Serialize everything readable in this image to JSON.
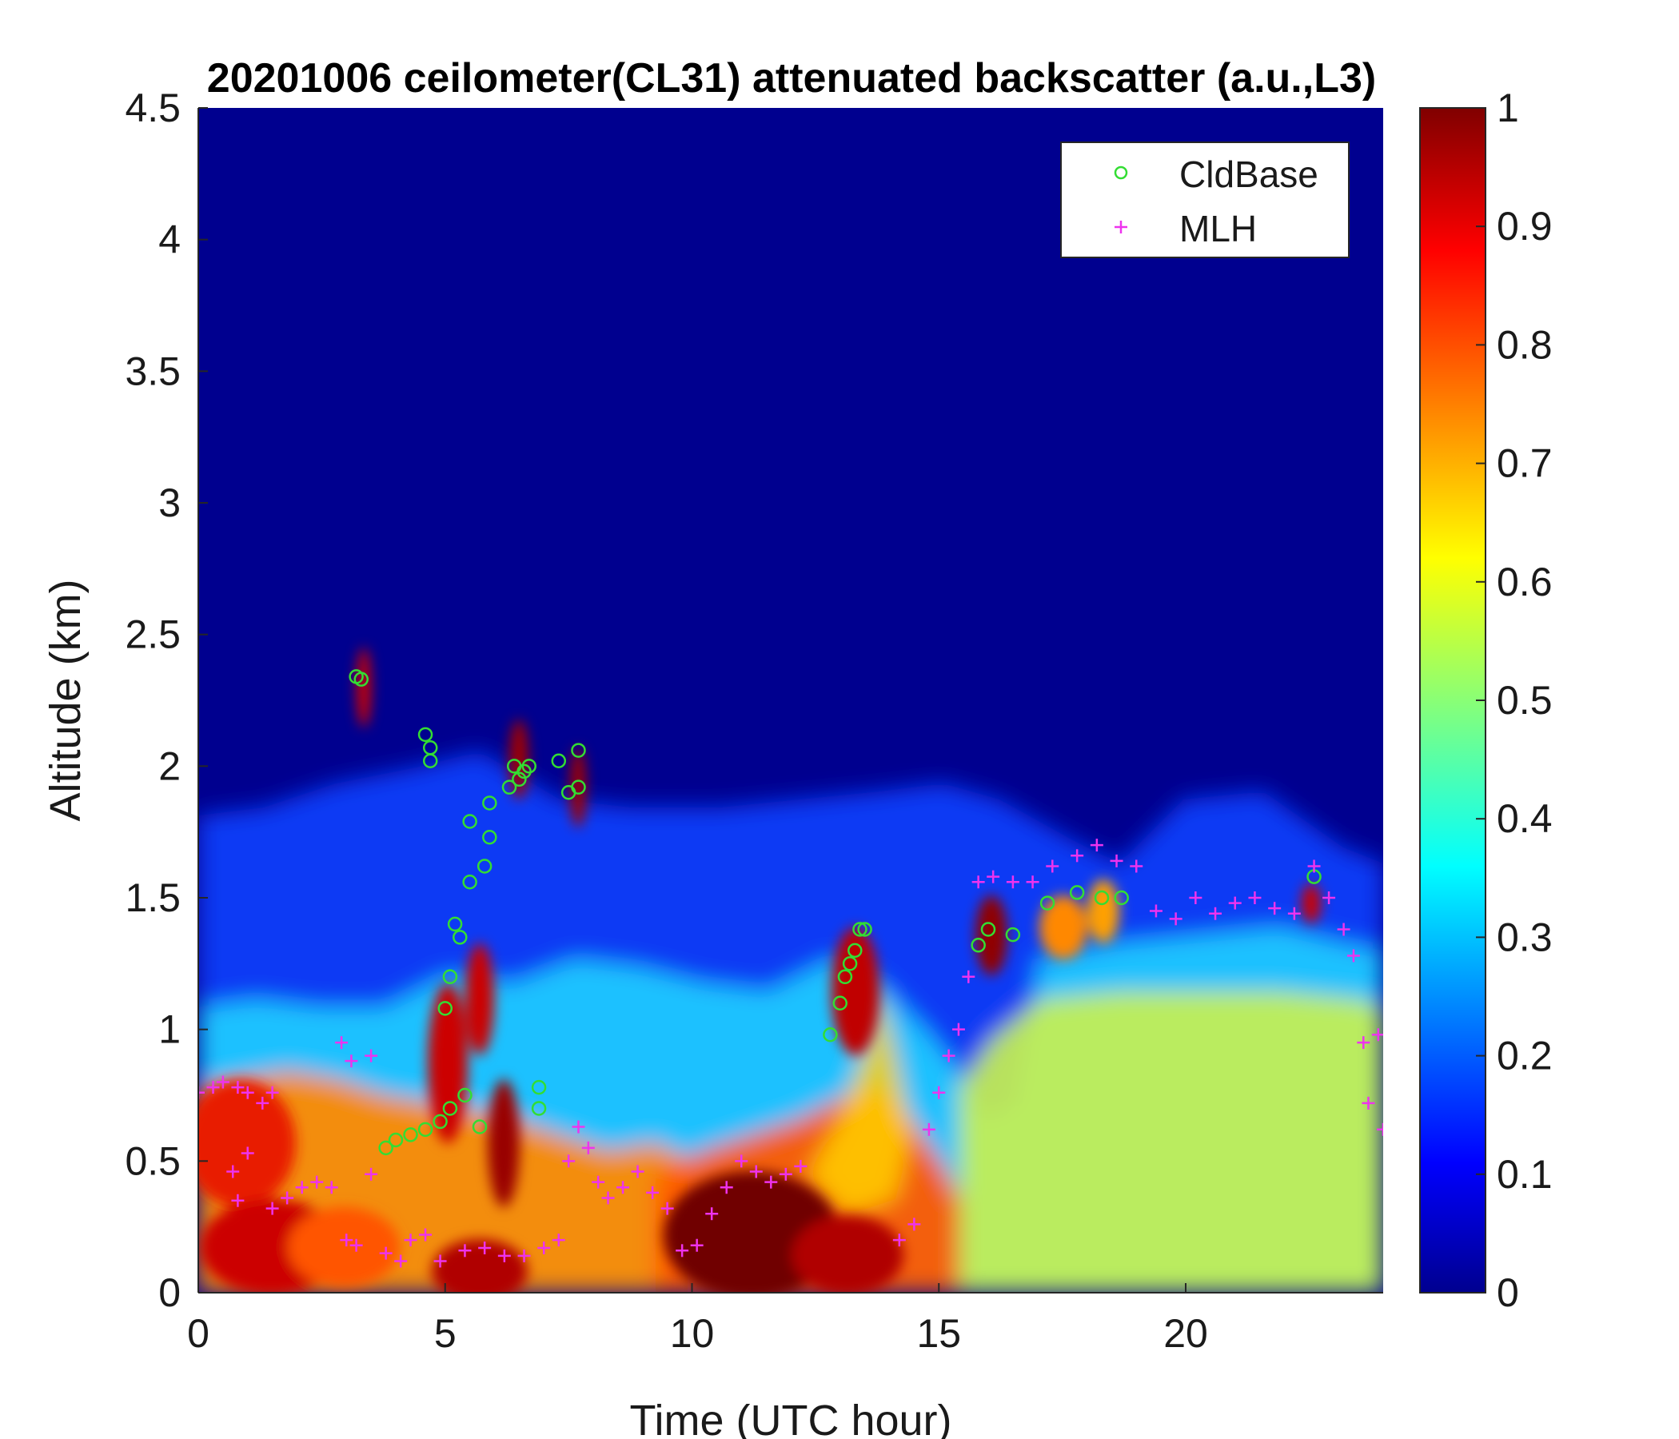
{
  "chart_data": {
    "type": "heatmap",
    "title": "20201006 ceilometer(CL31) attenuated backscatter (a.u.,L3)",
    "xlabel": "Time (UTC hour)",
    "ylabel": "Altitude (km)",
    "xlim": [
      0,
      24
    ],
    "ylim": [
      0,
      4.5
    ],
    "x_ticks": [
      "0",
      "5",
      "10",
      "15",
      "20"
    ],
    "y_ticks": [
      "0",
      "0.5",
      "1",
      "1.5",
      "2",
      "2.5",
      "3",
      "3.5",
      "4",
      "4.5"
    ],
    "colorbar": {
      "colormap": "jet",
      "clim": [
        0,
        1
      ],
      "ticks": [
        "0",
        "0.1",
        "0.2",
        "0.3",
        "0.4",
        "0.5",
        "0.6",
        "0.7",
        "0.8",
        "0.9",
        "1"
      ]
    },
    "legend": {
      "placement": "top-right"
    },
    "series": [
      {
        "name": "CldBase",
        "marker": "circle",
        "color": "#33dd33",
        "points": [
          [
            3.2,
            2.34
          ],
          [
            3.3,
            2.33
          ],
          [
            4.6,
            2.12
          ],
          [
            4.7,
            2.07
          ],
          [
            4.7,
            2.02
          ],
          [
            5.0,
            1.08
          ],
          [
            5.1,
            1.2
          ],
          [
            5.2,
            1.4
          ],
          [
            5.3,
            1.35
          ],
          [
            5.5,
            1.79
          ],
          [
            5.5,
            1.56
          ],
          [
            5.8,
            1.62
          ],
          [
            5.9,
            1.86
          ],
          [
            5.9,
            1.73
          ],
          [
            6.3,
            1.92
          ],
          [
            6.4,
            2.0
          ],
          [
            6.5,
            1.95
          ],
          [
            6.6,
            1.98
          ],
          [
            6.7,
            2.0
          ],
          [
            7.3,
            2.02
          ],
          [
            7.5,
            1.9
          ],
          [
            7.7,
            2.06
          ],
          [
            7.7,
            1.92
          ],
          [
            3.8,
            0.55
          ],
          [
            4.0,
            0.58
          ],
          [
            4.3,
            0.6
          ],
          [
            4.6,
            0.62
          ],
          [
            4.9,
            0.65
          ],
          [
            5.1,
            0.7
          ],
          [
            5.4,
            0.75
          ],
          [
            5.7,
            0.63
          ],
          [
            6.9,
            0.7
          ],
          [
            6.9,
            0.78
          ],
          [
            12.8,
            0.98
          ],
          [
            13.0,
            1.1
          ],
          [
            13.1,
            1.2
          ],
          [
            13.2,
            1.25
          ],
          [
            13.3,
            1.3
          ],
          [
            13.4,
            1.38
          ],
          [
            13.5,
            1.38
          ],
          [
            15.8,
            1.32
          ],
          [
            16.0,
            1.38
          ],
          [
            16.5,
            1.36
          ],
          [
            17.2,
            1.48
          ],
          [
            17.8,
            1.52
          ],
          [
            18.3,
            1.5
          ],
          [
            18.7,
            1.5
          ],
          [
            22.6,
            1.58
          ]
        ]
      },
      {
        "name": "MLH",
        "marker": "plus",
        "color": "#ee33ee",
        "points": [
          [
            0.0,
            0.76
          ],
          [
            0.3,
            0.78
          ],
          [
            0.5,
            0.8
          ],
          [
            0.8,
            0.78
          ],
          [
            1.0,
            0.76
          ],
          [
            1.3,
            0.72
          ],
          [
            1.5,
            0.76
          ],
          [
            0.7,
            0.46
          ],
          [
            0.8,
            0.35
          ],
          [
            1.0,
            0.53
          ],
          [
            1.5,
            0.32
          ],
          [
            1.8,
            0.36
          ],
          [
            2.1,
            0.4
          ],
          [
            2.4,
            0.42
          ],
          [
            2.7,
            0.4
          ],
          [
            3.0,
            0.2
          ],
          [
            3.2,
            0.18
          ],
          [
            2.9,
            0.95
          ],
          [
            3.1,
            0.88
          ],
          [
            3.5,
            0.9
          ],
          [
            3.5,
            0.45
          ],
          [
            3.8,
            0.15
          ],
          [
            4.1,
            0.12
          ],
          [
            4.3,
            0.2
          ],
          [
            4.6,
            0.22
          ],
          [
            4.9,
            0.12
          ],
          [
            5.4,
            0.16
          ],
          [
            5.8,
            0.17
          ],
          [
            6.2,
            0.14
          ],
          [
            6.6,
            0.14
          ],
          [
            7.0,
            0.17
          ],
          [
            7.3,
            0.2
          ],
          [
            7.5,
            0.5
          ],
          [
            7.7,
            0.63
          ],
          [
            7.9,
            0.55
          ],
          [
            8.1,
            0.42
          ],
          [
            8.3,
            0.36
          ],
          [
            8.6,
            0.4
          ],
          [
            8.9,
            0.46
          ],
          [
            9.2,
            0.38
          ],
          [
            9.5,
            0.32
          ],
          [
            9.8,
            0.16
          ],
          [
            10.1,
            0.18
          ],
          [
            10.4,
            0.3
          ],
          [
            10.7,
            0.4
          ],
          [
            11.0,
            0.5
          ],
          [
            11.3,
            0.46
          ],
          [
            11.6,
            0.42
          ],
          [
            11.9,
            0.45
          ],
          [
            12.2,
            0.48
          ],
          [
            14.2,
            0.2
          ],
          [
            14.5,
            0.26
          ],
          [
            14.8,
            0.62
          ],
          [
            15.0,
            0.76
          ],
          [
            15.2,
            0.9
          ],
          [
            15.4,
            1.0
          ],
          [
            15.6,
            1.2
          ],
          [
            15.8,
            1.56
          ],
          [
            16.1,
            1.58
          ],
          [
            16.5,
            1.56
          ],
          [
            16.9,
            1.56
          ],
          [
            17.3,
            1.62
          ],
          [
            17.8,
            1.66
          ],
          [
            18.2,
            1.7
          ],
          [
            18.6,
            1.64
          ],
          [
            19.0,
            1.62
          ],
          [
            19.4,
            1.45
          ],
          [
            19.8,
            1.42
          ],
          [
            20.2,
            1.5
          ],
          [
            20.6,
            1.44
          ],
          [
            21.0,
            1.48
          ],
          [
            21.4,
            1.5
          ],
          [
            21.8,
            1.46
          ],
          [
            22.2,
            1.44
          ],
          [
            22.6,
            1.62
          ],
          [
            22.9,
            1.5
          ],
          [
            23.2,
            1.38
          ],
          [
            23.4,
            1.28
          ],
          [
            23.6,
            0.95
          ],
          [
            23.7,
            0.72
          ],
          [
            23.9,
            0.98
          ],
          [
            24.0,
            0.62
          ]
        ]
      }
    ]
  }
}
